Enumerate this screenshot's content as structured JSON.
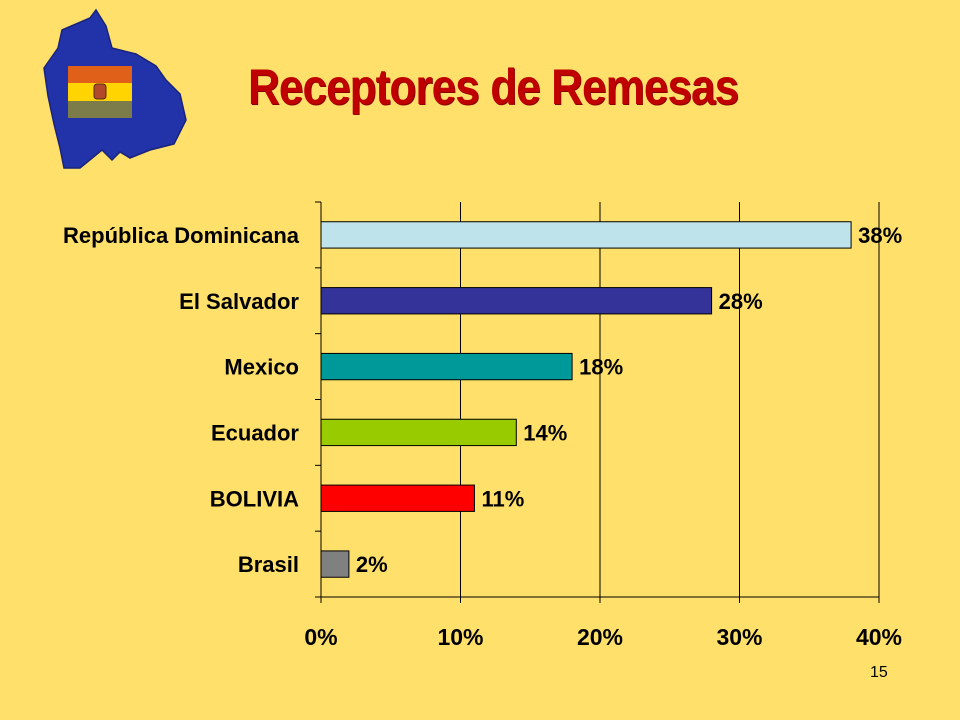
{
  "title": "Receptores de Remesas",
  "page_number": "15",
  "logo": {
    "icon": "bolivia-map-flag-icon",
    "map_color": "#2233AA",
    "flag_colors": [
      "#E0601A",
      "#FFD400",
      "#7C7C4A"
    ]
  },
  "colors": {
    "background": "#FFE06B",
    "title": "#C00000"
  },
  "chart_data": {
    "type": "bar",
    "orientation": "horizontal",
    "categories": [
      "República Dominicana",
      "El Salvador",
      "Mexico",
      "Ecuador",
      "BOLIVIA",
      "Brasil"
    ],
    "values": [
      38,
      28,
      18,
      14,
      11,
      2
    ],
    "value_labels": [
      "38%",
      "28%",
      "18%",
      "14%",
      "11%",
      "2%"
    ],
    "bar_colors": [
      "#BFE3EA",
      "#333399",
      "#009999",
      "#99CC00",
      "#FF0000",
      "#808080"
    ],
    "xlim": [
      0,
      40
    ],
    "x_ticks": [
      0,
      10,
      20,
      30,
      40
    ],
    "x_tick_labels": [
      "0%",
      "10%",
      "20%",
      "30%",
      "40%"
    ],
    "grid": "vertical",
    "title": "",
    "xlabel": "",
    "ylabel": ""
  }
}
